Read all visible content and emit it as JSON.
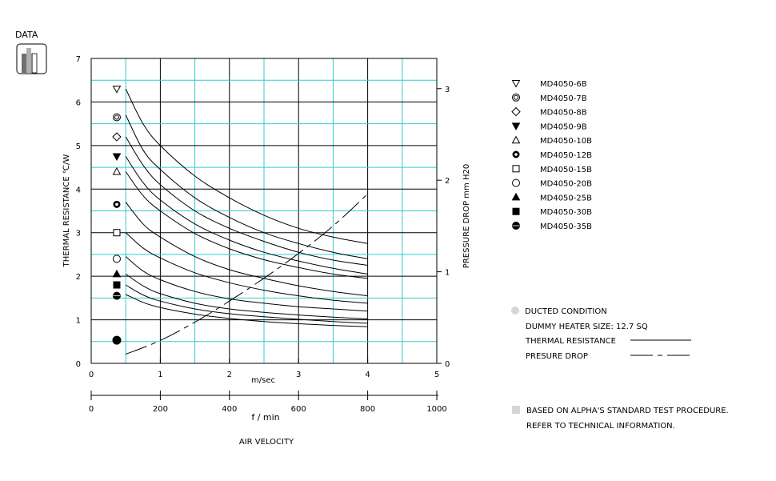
{
  "badge": {
    "label": "DATA",
    "icon": "bar-chart-icon"
  },
  "chart_data": {
    "type": "line",
    "ylabel": "THERMAL RESISTANCE  ℃/W",
    "y2label": "PRESSURE DROP   mm H20",
    "xlabel_top": "m/sec",
    "xlabel_bottom": "f / min",
    "xlabel_main": "AIR VELOCITY",
    "xlim": [
      0,
      5
    ],
    "ylim": [
      0,
      7
    ],
    "y2lim": [
      0,
      3.33
    ],
    "x2lim": [
      0,
      1000
    ],
    "grid": true,
    "legend_position": "right",
    "x_ticks": [
      0,
      1,
      2,
      3,
      4,
      5
    ],
    "y_ticks": [
      0,
      1,
      2,
      3,
      4,
      5,
      6,
      7
    ],
    "y2_ticks": [
      0,
      1,
      2,
      3
    ],
    "x2_ticks": [
      0,
      200,
      400,
      600,
      800,
      1000
    ],
    "x_labels": [
      "0",
      "1",
      "2",
      "3",
      "4",
      "5"
    ],
    "y_labels": [
      "0",
      "1",
      "2",
      "3",
      "4",
      "5",
      "6",
      "7"
    ],
    "y2_labels": [
      "0",
      "1",
      "2",
      "3"
    ],
    "x2_labels": [
      "0",
      "200",
      "400",
      "600",
      "800",
      "1000"
    ],
    "x": [
      0.5,
      0.75,
      1,
      1.5,
      2,
      2.5,
      3,
      3.5,
      4
    ],
    "series": [
      {
        "name": "MD4050-6B",
        "marker": "triangle-down-open",
        "start_marker": 6.3,
        "values": [
          6.3,
          5.5,
          5.0,
          4.3,
          3.8,
          3.4,
          3.1,
          2.9,
          2.75
        ]
      },
      {
        "name": "MD4050-7B",
        "marker": "double-circle",
        "start_marker": 5.65,
        "values": [
          5.7,
          4.9,
          4.45,
          3.8,
          3.35,
          3.0,
          2.75,
          2.55,
          2.4
        ]
      },
      {
        "name": "MD4050-8B",
        "marker": "diamond-open",
        "start_marker": 5.2,
        "values": [
          5.2,
          4.55,
          4.1,
          3.5,
          3.1,
          2.8,
          2.55,
          2.37,
          2.25
        ]
      },
      {
        "name": "MD4050-9B",
        "marker": "triangle-down-filled",
        "start_marker": 4.75,
        "values": [
          4.75,
          4.15,
          3.75,
          3.2,
          2.83,
          2.55,
          2.35,
          2.18,
          2.05
        ]
      },
      {
        "name": "MD4050-10B",
        "marker": "triangle-up-open",
        "start_marker": 4.4,
        "values": [
          4.4,
          3.85,
          3.5,
          2.98,
          2.63,
          2.38,
          2.2,
          2.05,
          1.95
        ]
      },
      {
        "name": "MD4050-12B",
        "marker": "bullseye",
        "start_marker": 3.65,
        "values": [
          3.7,
          3.2,
          2.9,
          2.45,
          2.15,
          1.95,
          1.78,
          1.65,
          1.55
        ]
      },
      {
        "name": "MD4050-15B",
        "marker": "square-open",
        "start_marker": 3.0,
        "values": [
          3.0,
          2.65,
          2.42,
          2.08,
          1.85,
          1.68,
          1.55,
          1.45,
          1.38
        ]
      },
      {
        "name": "MD4050-20B",
        "marker": "circle-open",
        "start_marker": 2.4,
        "values": [
          2.45,
          2.12,
          1.92,
          1.65,
          1.48,
          1.38,
          1.3,
          1.25,
          1.2
        ]
      },
      {
        "name": "MD4050-25B",
        "marker": "triangle-up-filled",
        "start_marker": 2.05,
        "values": [
          2.05,
          1.78,
          1.6,
          1.38,
          1.25,
          1.17,
          1.11,
          1.06,
          1.02
        ]
      },
      {
        "name": "MD4050-30B",
        "marker": "square-filled",
        "start_marker": 1.8,
        "values": [
          1.8,
          1.57,
          1.43,
          1.25,
          1.14,
          1.07,
          1.01,
          0.96,
          0.92
        ]
      },
      {
        "name": "MD4050-35B",
        "marker": "circle-filled-ring",
        "start_marker": 1.55,
        "values": [
          1.58,
          1.4,
          1.28,
          1.13,
          1.03,
          0.96,
          0.91,
          0.87,
          0.84
        ]
      }
    ],
    "pressure_drop": {
      "x": [
        0.5,
        1,
        1.5,
        2,
        2.5,
        3,
        3.5,
        4
      ],
      "values": [
        0.1,
        0.25,
        0.45,
        0.68,
        0.93,
        1.2,
        1.5,
        1.85
      ],
      "start_marker": 0.2
    }
  },
  "notes": {
    "ducted": "DUCTED CONDITION",
    "heater": "DUMMY HEATER SIZE: 12.7 SQ",
    "thermal": "THERMAL RESISTANCE",
    "pressure": "PRESURE DROP",
    "based": "BASED ON ALPHA'S STANDARD TEST PROCEDURE.",
    "refer": "REFER TO TECHNICAL INFORMATION.",
    "ducted_bullet_color": "#d6d6d6",
    "based_bullet_color": "#d6d6d6"
  },
  "colors": {
    "grid": "#33cccc",
    "frame": "#000000"
  }
}
